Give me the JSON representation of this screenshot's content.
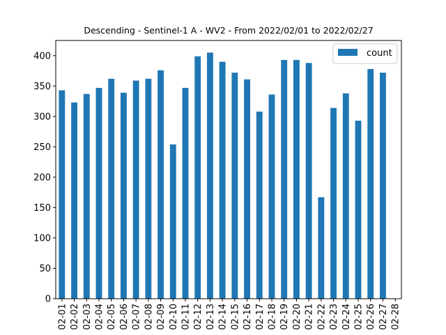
{
  "chart_data": {
    "type": "bar",
    "title": "Descending - Sentinel-1 A - WV2 - From 2022/02/01 to 2022/02/27",
    "xlabel": "",
    "ylabel": "",
    "categories": [
      "02-01",
      "02-02",
      "02-03",
      "02-04",
      "02-05",
      "02-06",
      "02-07",
      "02-08",
      "02-09",
      "02-10",
      "02-11",
      "02-12",
      "02-13",
      "02-14",
      "02-15",
      "02-16",
      "02-17",
      "02-18",
      "02-19",
      "02-20",
      "02-21",
      "02-22",
      "02-23",
      "02-24",
      "02-25",
      "02-26",
      "02-27",
      "02-28"
    ],
    "series": [
      {
        "name": "count",
        "color": "#1f77b4",
        "values": [
          343,
          323,
          337,
          347,
          362,
          339,
          359,
          362,
          376,
          254,
          347,
          399,
          405,
          390,
          372,
          361,
          308,
          336,
          393,
          393,
          388,
          167,
          314,
          338,
          293,
          378,
          372,
          null
        ]
      }
    ],
    "ylim": [
      0,
      425
    ],
    "yticks": [
      0,
      50,
      100,
      150,
      200,
      250,
      300,
      350,
      400
    ],
    "grid": false,
    "legend_position": "top-right"
  }
}
